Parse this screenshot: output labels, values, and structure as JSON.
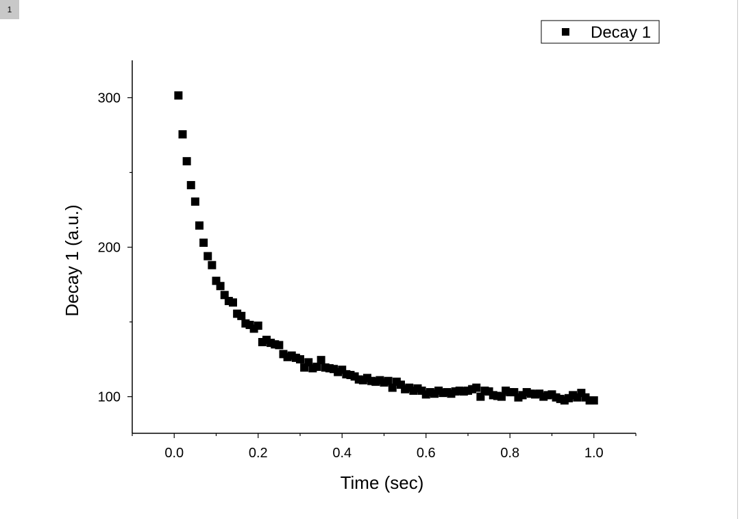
{
  "layer_tab": {
    "label": "1"
  },
  "chart_data": {
    "type": "scatter",
    "title": "",
    "xlabel": "Time (sec)",
    "ylabel": "Decay 1 (a.u.)",
    "xlim": [
      -0.1,
      1.1
    ],
    "ylim": [
      75.5,
      325
    ],
    "grid": false,
    "marker": "square",
    "color": "#000000",
    "legend": {
      "position": "top-right",
      "entries": [
        "Decay 1"
      ]
    },
    "x_ticks": [
      {
        "value": 0.0,
        "label": "0.0"
      },
      {
        "value": 0.2,
        "label": "0.2"
      },
      {
        "value": 0.4,
        "label": "0.4"
      },
      {
        "value": 0.6,
        "label": "0.6"
      },
      {
        "value": 0.8,
        "label": "0.8"
      },
      {
        "value": 1.0,
        "label": "1.0"
      }
    ],
    "y_ticks": [
      {
        "value": 100,
        "label": "100"
      },
      {
        "value": 200,
        "label": "200"
      },
      {
        "value": 300,
        "label": "300"
      }
    ],
    "series": [
      {
        "name": "Decay 1",
        "x": [
          0.01,
          0.02,
          0.03,
          0.04,
          0.05,
          0.06,
          0.07,
          0.08,
          0.09,
          0.1,
          0.11,
          0.12,
          0.13,
          0.14,
          0.15,
          0.16,
          0.17,
          0.18,
          0.19,
          0.2,
          0.21,
          0.22,
          0.23,
          0.24,
          0.25,
          0.26,
          0.27,
          0.28,
          0.29,
          0.3,
          0.31,
          0.32,
          0.33,
          0.34,
          0.35,
          0.36,
          0.37,
          0.38,
          0.39,
          0.4,
          0.41,
          0.42,
          0.43,
          0.44,
          0.45,
          0.46,
          0.47,
          0.48,
          0.49,
          0.5,
          0.51,
          0.52,
          0.53,
          0.54,
          0.55,
          0.56,
          0.57,
          0.58,
          0.59,
          0.6,
          0.61,
          0.62,
          0.63,
          0.64,
          0.65,
          0.66,
          0.67,
          0.68,
          0.69,
          0.7,
          0.71,
          0.72,
          0.73,
          0.74,
          0.75,
          0.76,
          0.77,
          0.78,
          0.79,
          0.8,
          0.81,
          0.82,
          0.83,
          0.84,
          0.85,
          0.86,
          0.87,
          0.88,
          0.89,
          0.9,
          0.91,
          0.92,
          0.93,
          0.94,
          0.95,
          0.96,
          0.97,
          0.98,
          0.99,
          1.0
        ],
        "values": [
          301.5,
          275.5,
          257.5,
          241.5,
          230.5,
          214.5,
          203,
          194,
          188,
          177.5,
          174,
          168,
          164,
          163,
          155.5,
          154,
          149,
          148,
          145.5,
          147.5,
          136.5,
          138,
          136,
          135,
          134.5,
          128.5,
          126.5,
          127.5,
          126,
          125,
          119.5,
          123,
          119,
          120,
          124.5,
          119.5,
          119,
          118.5,
          116.5,
          118,
          115,
          114.5,
          113.5,
          111.5,
          111,
          112.5,
          110.5,
          110,
          111,
          109.5,
          110.5,
          106,
          110,
          108,
          105,
          106,
          104,
          105.5,
          104,
          101.5,
          103,
          102,
          104,
          102.5,
          103,
          102,
          103.5,
          104,
          103.5,
          104,
          105,
          106,
          100,
          104,
          103.5,
          101,
          100.5,
          100,
          104,
          103,
          103,
          99.5,
          101,
          103,
          102,
          101.5,
          102,
          100,
          101,
          101.5,
          99.5,
          98.5,
          97.5,
          99,
          101,
          99.5,
          102.5,
          99.5,
          97.5,
          97.5
        ]
      }
    ]
  }
}
